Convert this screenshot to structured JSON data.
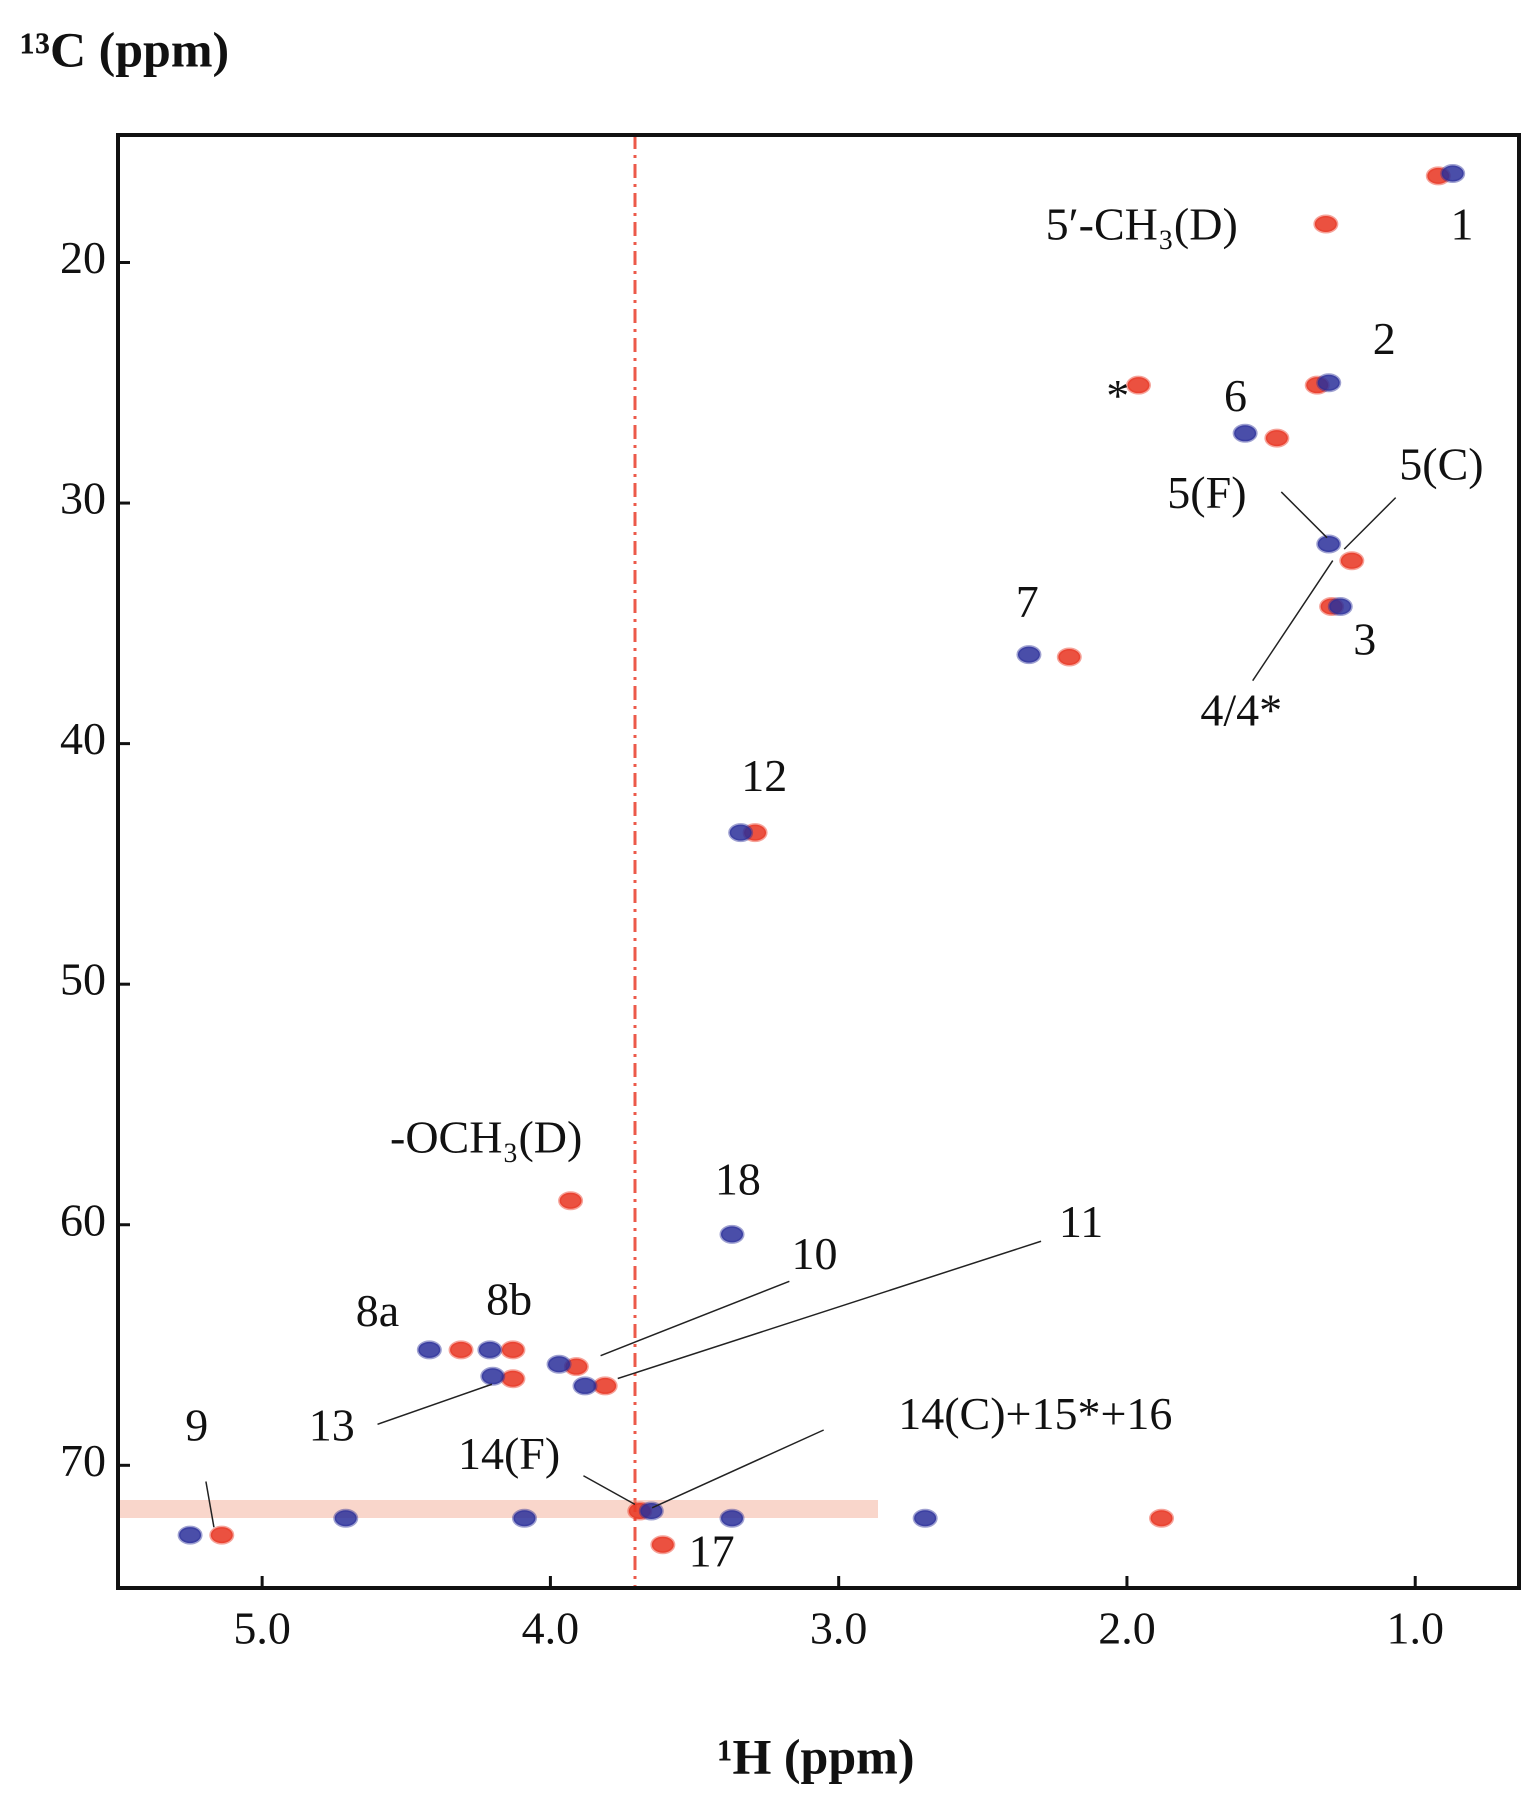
{
  "chart_data": {
    "type": "scatter",
    "xlabel": "¹H (ppm)",
    "ylabel": "¹³C (ppm)",
    "xlim": [
      5.5,
      0.64
    ],
    "ylim": [
      14.7,
      75.1
    ],
    "xticks": [
      {
        "value": 5,
        "label": "5.0"
      },
      {
        "value": 4,
        "label": "4.0"
      },
      {
        "value": 3,
        "label": "3.0"
      },
      {
        "value": 2,
        "label": "2.0"
      },
      {
        "value": 1,
        "label": "1.0"
      }
    ],
    "yticks": [
      20,
      30,
      40,
      50,
      60,
      70
    ],
    "series": [
      {
        "color": "#e8321e",
        "x": [
          0.92,
          1.31,
          1.96,
          1.34,
          1.48,
          1.22,
          1.29,
          2.2,
          3.29,
          3.93,
          4.31,
          4.13,
          4.13,
          3.91,
          3.81,
          3.69,
          3.61,
          5.14,
          1.88
        ],
        "values": [
          16.4,
          18.4,
          25.1,
          25.1,
          27.3,
          32.4,
          34.3,
          36.4,
          43.7,
          59.0,
          65.2,
          65.2,
          66.4,
          65.9,
          66.7,
          71.9,
          73.3,
          72.9,
          72.2
        ]
      },
      {
        "color": "#2a2f9a",
        "x": [
          0.87,
          1.3,
          1.59,
          1.3,
          1.26,
          2.34,
          3.34,
          3.37,
          4.42,
          4.21,
          4.2,
          3.97,
          3.88,
          3.65,
          5.25,
          4.71,
          4.09,
          3.37,
          2.7
        ],
        "values": [
          16.3,
          25.0,
          27.1,
          31.7,
          34.3,
          36.3,
          43.7,
          60.4,
          65.2,
          65.2,
          66.3,
          65.8,
          66.7,
          71.9,
          72.9,
          72.2,
          72.2,
          72.2,
          72.2
        ]
      }
    ],
    "annotations": [
      "1",
      "5′-CH₃(D)",
      "2",
      "*",
      "6",
      "5(F)",
      "5(C)",
      "3",
      "4/4*",
      "7",
      "12",
      "-OCH₃(D)",
      "18",
      "10",
      "11",
      "8a",
      "8b",
      "13",
      "14(F)",
      "14(C)+15*+16",
      "9",
      "17"
    ]
  }
}
